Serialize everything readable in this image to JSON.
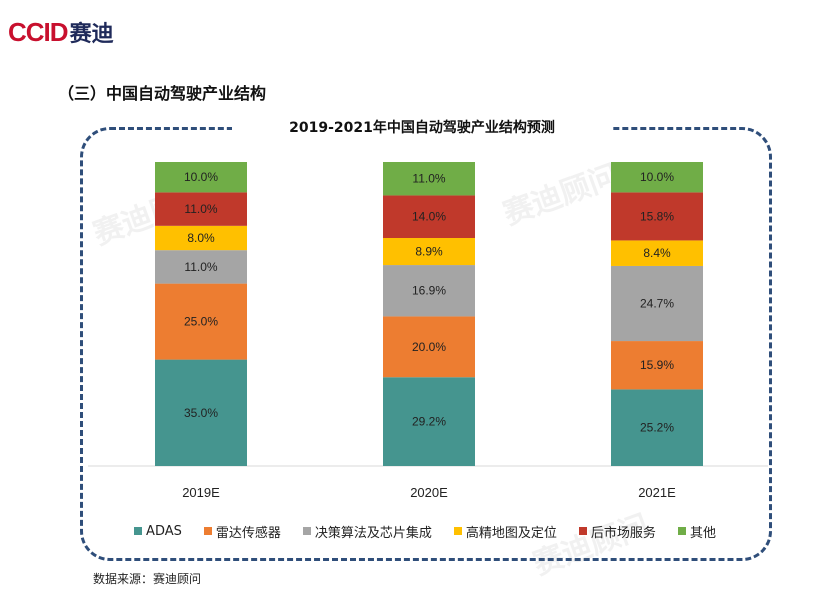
{
  "brand": {
    "ccid": "CCID",
    "chinese": "赛迪"
  },
  "section_title": "（三）中国自动驾驶产业结构",
  "source_text": "数据来源：赛迪顾问",
  "watermark_text": "赛迪顾问",
  "chart_data": {
    "type": "bar",
    "stacked": true,
    "title": "2019-2021年中国自动驾驶产业结构预测",
    "categories": [
      "2019E",
      "2020E",
      "2021E"
    ],
    "ylim": [
      0,
      100
    ],
    "grid": false,
    "legend_position": "bottom",
    "series": [
      {
        "name": "ADAS",
        "color": "#45958f",
        "values": [
          35.0,
          29.2,
          25.2
        ],
        "labels": [
          "35.0%",
          "29.2%",
          "25.2%"
        ]
      },
      {
        "name": "雷达传感器",
        "color": "#ed7d31",
        "values": [
          25.0,
          20.0,
          15.9
        ],
        "labels": [
          "25.0%",
          "20.0%",
          "15.9%"
        ]
      },
      {
        "name": "决策算法及芯片集成",
        "color": "#a5a5a5",
        "values": [
          11.0,
          16.9,
          24.7
        ],
        "labels": [
          "11.0%",
          "16.9%",
          "24.7%"
        ]
      },
      {
        "name": "高精地图及定位",
        "color": "#ffc000",
        "values": [
          8.0,
          8.9,
          8.4
        ],
        "labels": [
          "8.0%",
          "8.9%",
          "8.4%"
        ]
      },
      {
        "name": "后市场服务",
        "color": "#c0392b",
        "values": [
          11.0,
          14.0,
          15.8
        ],
        "labels": [
          "11.0%",
          "14.0%",
          "15.8%"
        ]
      },
      {
        "name": "其他",
        "color": "#70ad47",
        "values": [
          10.0,
          11.0,
          10.0
        ],
        "labels": [
          "10.0%",
          "11.0%",
          "10.0%"
        ]
      }
    ]
  }
}
